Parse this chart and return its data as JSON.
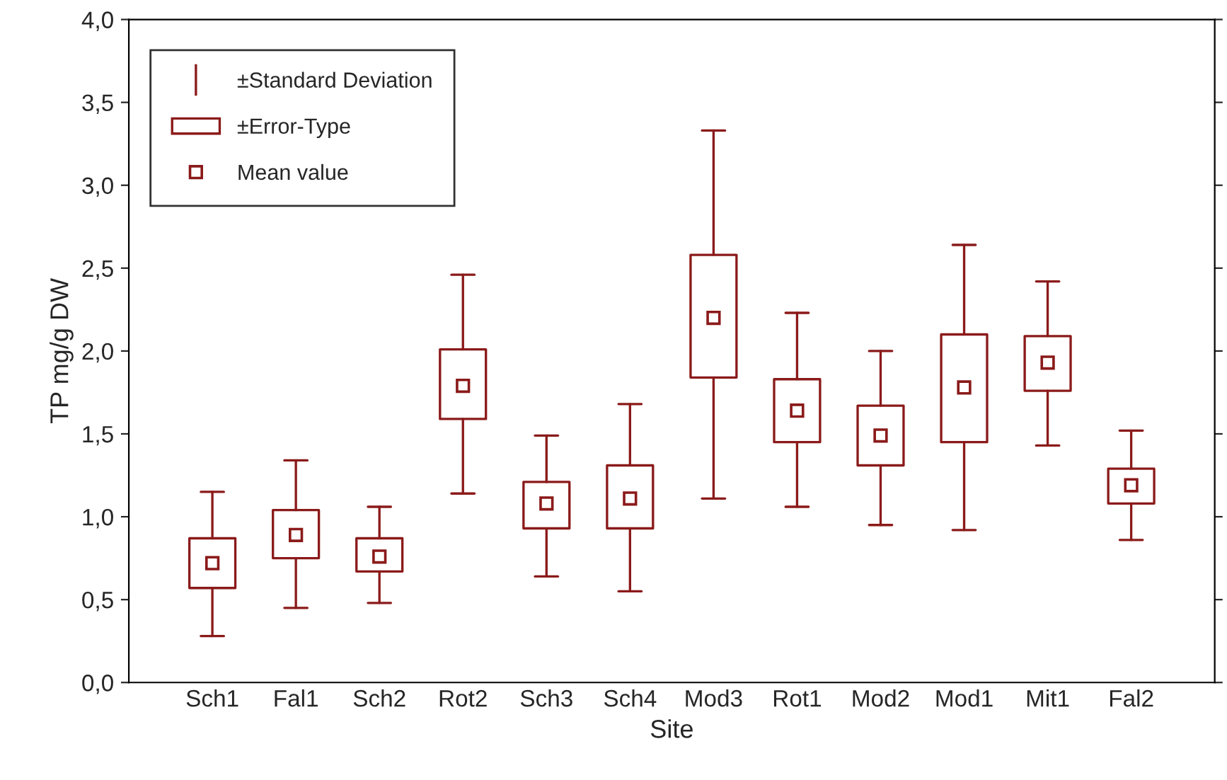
{
  "chart_data": {
    "type": "box",
    "xlabel": "Site",
    "ylabel": "TP mg/g DW",
    "categories": [
      "Sch1",
      "Fal1",
      "Sch2",
      "Rot2",
      "Sch3",
      "Sch4",
      "Mod3",
      "Rot1",
      "Mod2",
      "Mod1",
      "Mit1",
      "Fal2"
    ],
    "series": [
      {
        "color": "#8b1a1a",
        "boxes": [
          {
            "low": 0.28,
            "q1": 0.57,
            "median": 0.72,
            "q3": 0.87,
            "high": 1.15
          },
          {
            "low": 0.45,
            "q1": 0.75,
            "median": 0.89,
            "q3": 1.04,
            "high": 1.34
          },
          {
            "low": 0.48,
            "q1": 0.67,
            "median": 0.76,
            "q3": 0.87,
            "high": 1.06
          },
          {
            "low": 1.14,
            "q1": 1.59,
            "median": 1.79,
            "q3": 2.01,
            "high": 2.46
          },
          {
            "low": 0.64,
            "q1": 0.93,
            "median": 1.08,
            "q3": 1.21,
            "high": 1.49
          },
          {
            "low": 0.55,
            "q1": 0.93,
            "median": 1.11,
            "q3": 1.31,
            "high": 1.68
          },
          {
            "low": 1.11,
            "q1": 1.84,
            "median": 2.2,
            "q3": 2.58,
            "high": 3.33
          },
          {
            "low": 1.06,
            "q1": 1.45,
            "median": 1.64,
            "q3": 1.83,
            "high": 2.23
          },
          {
            "low": 0.95,
            "q1": 1.31,
            "median": 1.49,
            "q3": 1.67,
            "high": 2.0
          },
          {
            "low": 0.92,
            "q1": 1.45,
            "median": 1.78,
            "q3": 2.1,
            "high": 2.64
          },
          {
            "low": 1.43,
            "q1": 1.76,
            "median": 1.93,
            "q3": 2.09,
            "high": 2.42
          },
          {
            "low": 0.86,
            "q1": 1.08,
            "median": 1.19,
            "q3": 1.29,
            "high": 1.52
          }
        ]
      }
    ],
    "annotations": [
      "±Standard Deviation",
      "±Error-Type",
      "Mean value"
    ],
    "grid": false,
    "marker": "square",
    "ylim": [
      0,
      4
    ],
    "yticks": [
      {
        "value": 0,
        "label": "0,0"
      },
      {
        "value": 0.5,
        "label": "0,5"
      },
      {
        "value": 1,
        "label": "1,0"
      },
      {
        "value": 1.5,
        "label": "1,5"
      },
      {
        "value": 2,
        "label": "2,0"
      },
      {
        "value": 2.5,
        "label": "2,5"
      },
      {
        "value": 3,
        "label": "3,0"
      },
      {
        "value": 3.5,
        "label": "3,5"
      },
      {
        "value": 4,
        "label": "4,0"
      }
    ]
  }
}
